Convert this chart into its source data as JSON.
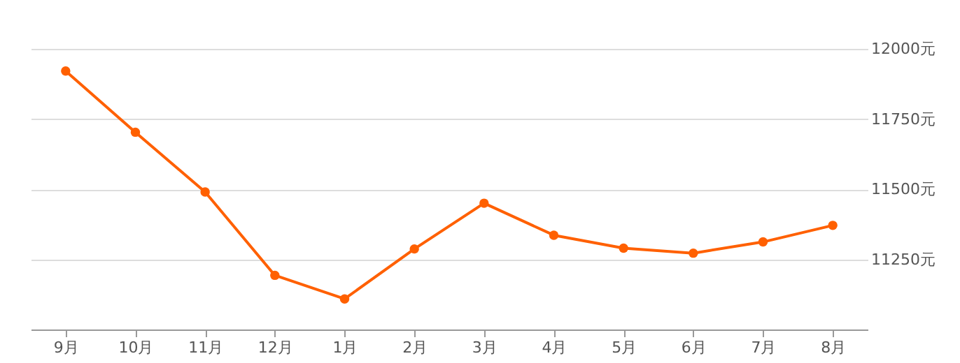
{
  "chart_data": {
    "type": "line",
    "categories": [
      "9月",
      "10月",
      "11月",
      "12月",
      "1月",
      "2月",
      "3月",
      "4月",
      "5月",
      "6月",
      "7月",
      "8月"
    ],
    "series": [
      {
        "color": "#ff6000",
        "values": [
          11921,
          11703,
          11490,
          11193,
          11109,
          11287,
          11450,
          11336,
          11290,
          11272,
          11312,
          11371
        ]
      }
    ],
    "ylim": [
      11000,
      12000
    ],
    "yticks": [
      {
        "value": 11250,
        "label": "11250元"
      },
      {
        "value": 11500,
        "label": "11500元"
      },
      {
        "value": 11750,
        "label": "11750元"
      },
      {
        "value": 12000,
        "label": "12000元"
      }
    ],
    "grid": "y",
    "marker": "circle",
    "line_style": "solid"
  }
}
